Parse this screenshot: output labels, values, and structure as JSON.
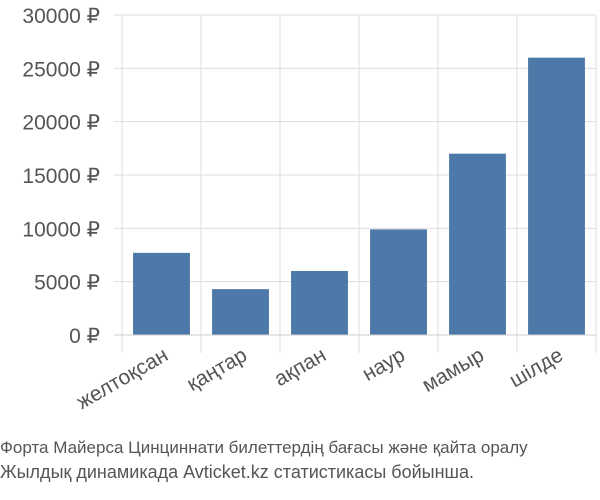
{
  "chart_data": {
    "type": "bar",
    "title": "",
    "xlabel": "",
    "ylabel": "",
    "categories": [
      "желтоқсан",
      "қаңтар",
      "ақпан",
      "наур",
      "мамыр",
      "шілде"
    ],
    "values": [
      7700,
      4300,
      6000,
      9900,
      17000,
      26000
    ],
    "ylim": [
      0,
      30000
    ],
    "yticks": [
      0,
      5000,
      10000,
      15000,
      20000,
      25000,
      30000
    ],
    "ytick_labels": [
      "0 ₽",
      "5000 ₽",
      "10000 ₽",
      "15000 ₽",
      "20000 ₽",
      "25000 ₽",
      "30000 ₽"
    ],
    "grid": true,
    "bar_color": "#4d79a8"
  },
  "caption": {
    "line1": "Форта Майерса Цинциннати билеттердің бағасы және қайта оралу",
    "line2": "Жылдық динамикада Avticket.kz статистикасы бойынша."
  }
}
